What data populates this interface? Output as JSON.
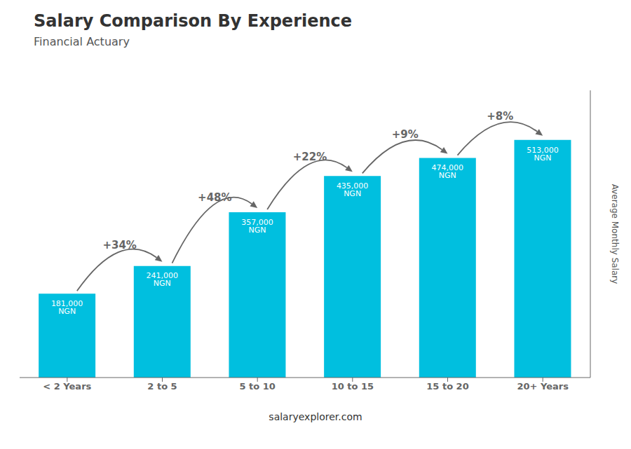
{
  "chart_data": {
    "type": "bar",
    "title": "Salary Comparison By Experience",
    "subtitle": "Financial Actuary",
    "categories": [
      "< 2 Years",
      "2 to 5",
      "5 to 10",
      "10 to 15",
      "15 to 20",
      "20+ Years"
    ],
    "values": [
      181000,
      241000,
      357000,
      435000,
      474000,
      513000
    ],
    "value_labels": [
      "181,000 NGN",
      "241,000 NGN",
      "357,000 NGN",
      "435,000 NGN",
      "474,000 NGN",
      "513,000 NGN"
    ],
    "data_labels": true,
    "color": "#00BFDF",
    "ylabel": "Average Monthly Salary",
    "ylim": [
      0,
      620000
    ],
    "grid": false,
    "tick_labels": "x",
    "annotations": [
      {
        "from": "< 2 Years",
        "to": "2 to 5",
        "text": "+34%"
      },
      {
        "from": "2 to 5",
        "to": "5 to 10",
        "text": "+48%"
      },
      {
        "from": "5 to 10",
        "to": "10 to 15",
        "text": "+22%"
      },
      {
        "from": "10 to 15",
        "to": "15 to 20",
        "text": "+9%"
      },
      {
        "from": "15 to 20",
        "to": "20+ Years",
        "text": "+8%"
      }
    ],
    "footer": "salaryexplorer.com"
  }
}
